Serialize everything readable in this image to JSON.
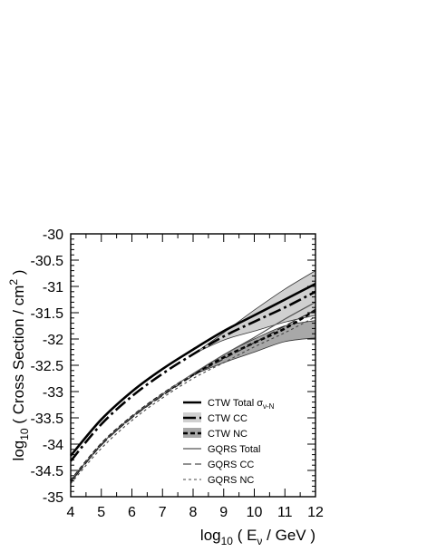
{
  "chart_data": {
    "type": "line",
    "xlabel": {
      "main": "log",
      "sub": "10",
      "mid": " ( E",
      "sub2": "ν",
      "end": " / GeV )"
    },
    "ylabel": {
      "main": "log",
      "sub": "10",
      "mid": " ( Cross Section / cm",
      "sup": "2",
      "end": " )"
    },
    "xlim": [
      4,
      12
    ],
    "ylim": [
      -35,
      -30
    ],
    "xticks": [
      "4",
      "5",
      "6",
      "7",
      "8",
      "9",
      "10",
      "11",
      "12"
    ],
    "yticks": [
      "-30",
      "-30.5",
      "-31",
      "-31.5",
      "-32",
      "-32.5",
      "-33",
      "-33.5",
      "-34",
      "-34.5",
      "-35"
    ],
    "x": [
      4,
      5,
      6,
      7,
      8,
      9,
      10,
      11,
      12
    ],
    "series": [
      {
        "name": "CTW Total σν-N",
        "values": [
          -34.22,
          -33.53,
          -33.0,
          -32.57,
          -32.2,
          -31.85,
          -31.55,
          -31.25,
          -30.95
        ]
      },
      {
        "name": "CTW CC",
        "values": [
          -34.32,
          -33.62,
          -33.09,
          -32.66,
          -32.29,
          -31.95,
          -31.67,
          -31.4,
          -31.1
        ]
      },
      {
        "name": "CTW NC",
        "values": [
          -34.7,
          -34.0,
          -33.48,
          -33.05,
          -32.68,
          -32.35,
          -32.07,
          -31.8,
          -31.45
        ]
      },
      {
        "name": "GQRS Total",
        "values": [
          -34.7,
          -34.0,
          -33.48,
          -33.05,
          -32.66,
          -32.3,
          -31.97,
          -31.62,
          -31.3
        ]
      },
      {
        "name": "GQRS CC",
        "values": [
          -34.72,
          -34.02,
          -33.5,
          -33.08,
          -32.7,
          -32.38,
          -32.07,
          -31.75,
          -31.45
        ]
      },
      {
        "name": "GQRS NC",
        "values": [
          -34.75,
          -34.08,
          -33.55,
          -33.12,
          -32.75,
          -32.45,
          -32.15,
          -31.88,
          -31.58
        ]
      }
    ],
    "bands": [
      {
        "name": "CTW CC band",
        "color": "#d0d0d0",
        "x": [
          8,
          9,
          10,
          11,
          12
        ],
        "lower": [
          -32.29,
          -32.02,
          -31.85,
          -31.68,
          -31.55
        ],
        "upper": [
          -32.29,
          -31.88,
          -31.45,
          -31.05,
          -30.7
        ]
      },
      {
        "name": "CTW NC band",
        "color": "#a8a8a8",
        "x": [
          8,
          9,
          10,
          11,
          12
        ],
        "lower": [
          -32.68,
          -32.45,
          -32.25,
          -32.05,
          -31.98
        ],
        "upper": [
          -32.68,
          -32.3,
          -32.0,
          -31.75,
          -31.65
        ]
      }
    ],
    "legend": {
      "position": "bottom-right",
      "entries": [
        {
          "text": "CTW Total σ",
          "sub": "ν-N",
          "style": "ctw-total"
        },
        {
          "text": "CTW CC",
          "style": "ctw-cc"
        },
        {
          "text": "CTW NC",
          "style": "ctw-nc"
        },
        {
          "text": "GQRS Total",
          "style": "gqrs-total"
        },
        {
          "text": "GQRS CC",
          "style": "gqrs-cc"
        },
        {
          "text": "GQRS NC",
          "style": "gqrs-nc"
        }
      ]
    },
    "grid": false
  }
}
